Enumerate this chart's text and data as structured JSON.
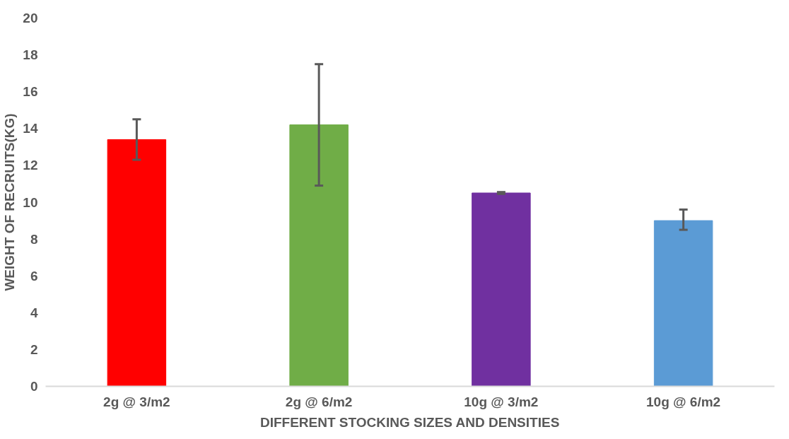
{
  "chart_data": {
    "type": "bar",
    "xlabel": "DIFFERENT STOCKING SIZES AND DENSITIES",
    "ylabel": "WEIGHT OF RECRUITS(KG)",
    "categories": [
      "2g @ 3/m2",
      "2g @ 6/m2",
      "10g @ 3/m2",
      "10g @ 6/m2"
    ],
    "values": [
      13.4,
      14.2,
      10.5,
      9.0
    ],
    "colors": [
      "#ff0000",
      "#70ad47",
      "#7030a0",
      "#5b9bd5"
    ],
    "errors": [
      [
        12.3,
        14.5
      ],
      [
        10.9,
        17.5
      ],
      0.05,
      [
        8.5,
        9.6
      ]
    ],
    "ylim": [
      0,
      20
    ],
    "yticks": [
      0,
      2,
      4,
      6,
      8,
      10,
      12,
      14,
      16,
      18,
      20
    ],
    "grid": false
  }
}
